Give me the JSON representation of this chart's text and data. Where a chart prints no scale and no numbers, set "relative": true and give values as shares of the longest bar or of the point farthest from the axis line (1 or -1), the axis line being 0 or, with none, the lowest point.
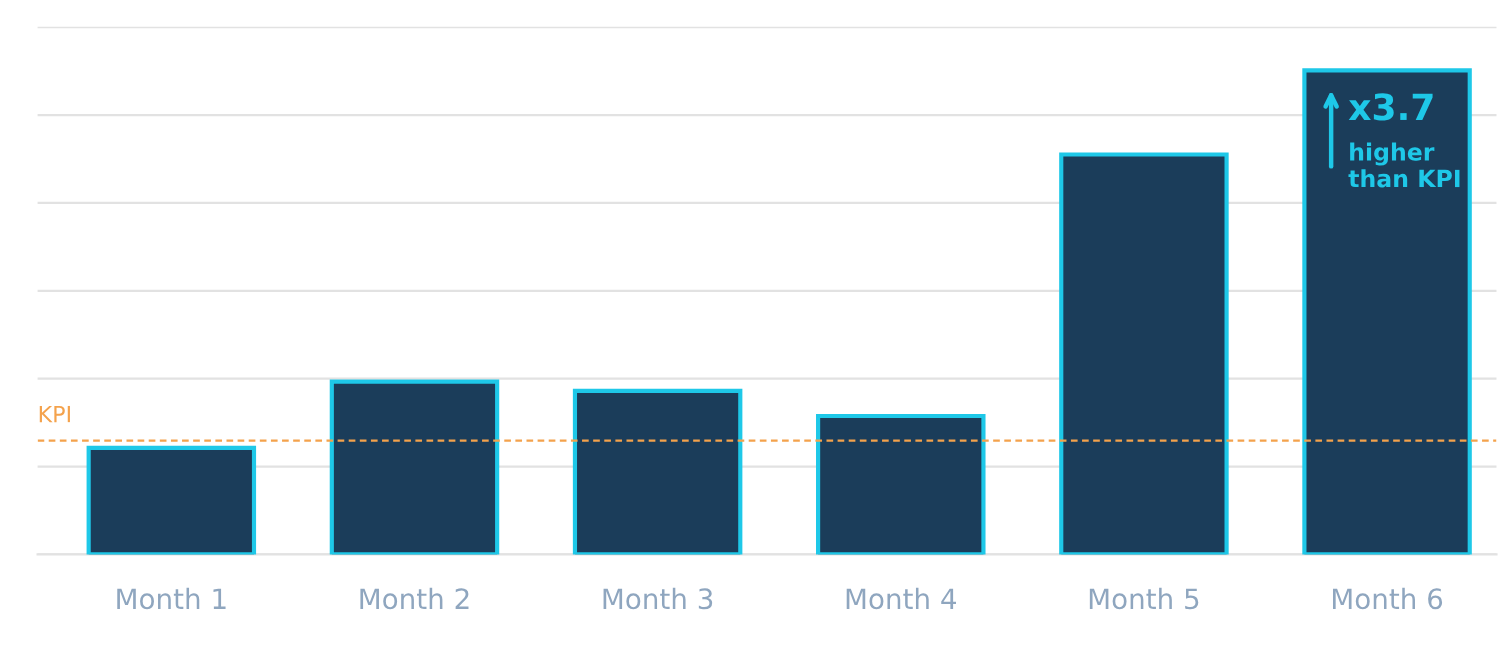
{
  "chart_data": {
    "type": "bar",
    "relative": true,
    "categories": [
      "Month 1",
      "Month 2",
      "Month 3",
      "Month 4",
      "Month 5",
      "Month 6"
    ],
    "values": [
      0.22,
      0.357,
      0.338,
      0.286,
      0.826,
      1.0
    ],
    "color": "#1b3d5a",
    "grid": "y",
    "ref_lines": [
      {
        "axis": "y",
        "value": 0.235,
        "label": "KPI",
        "color": "#f4a24c",
        "line_style": "dashed"
      }
    ],
    "annotations": [
      {
        "text": "x3.7\nhigher\nthan KPI",
        "x": "Month 6",
        "y": 1.0
      }
    ]
  }
}
